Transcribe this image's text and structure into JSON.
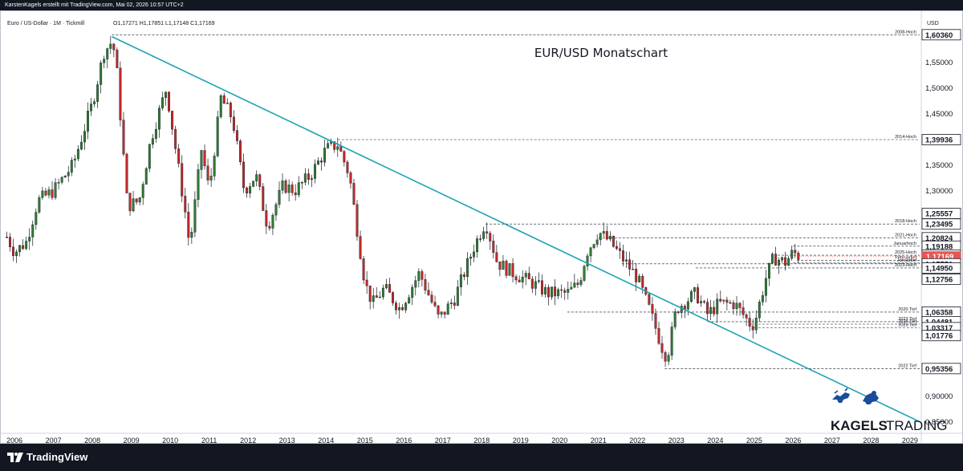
{
  "header": {
    "attribution": "KarstenKagels erstellt mit TradingView.com, Mai 02, 2026 10:57 UTC+2"
  },
  "legend": {
    "symbol": "Euro / US-Dollar · 1M · Tickmill",
    "ohlc": "O1,17271  H1,17851  L1,17148  C1,17169"
  },
  "footer": {
    "brand": "TradingView",
    "icon": "tradingview-logo-icon"
  },
  "watermark": {
    "brand_bold": "KAGELS",
    "brand_light": "TRADING",
    "icon": "bull-bear-icon"
  },
  "colors": {
    "up": "#26a69a",
    "down": "#ef5350",
    "candle_up": "#2e7d32",
    "candle_down": "#c62828",
    "trendline": "#1da2b4",
    "price_label": "#ef5350",
    "brand_blue": "#1a4c9a"
  },
  "chart_data": {
    "type": "candlestick",
    "title": "EUR/USD Monatschart",
    "instrument": "Euro / US-Dollar",
    "timeframe": "1M",
    "currency": "USD",
    "x_range": [
      2005.75,
      2029.25
    ],
    "y_range": [
      0.84,
      1.615
    ],
    "y_ticks": [
      0.85,
      0.9,
      1.3,
      1.35,
      1.45,
      1.5,
      1.55
    ],
    "x_ticks": [
      "2006",
      "2007",
      "2008",
      "2009",
      "2010",
      "2011",
      "2012",
      "2013",
      "2014",
      "2015",
      "2016",
      "2017",
      "2018",
      "2019",
      "2020",
      "2021",
      "2022",
      "2023",
      "2024",
      "2025",
      "2026",
      "2027",
      "2028",
      "2029"
    ],
    "last_price": 1.17169,
    "price_path": [
      [
        2005.8,
        1.21
      ],
      [
        2006.0,
        1.18
      ],
      [
        2006.3,
        1.2
      ],
      [
        2006.6,
        1.28
      ],
      [
        2007.0,
        1.3
      ],
      [
        2007.5,
        1.35
      ],
      [
        2008.0,
        1.47
      ],
      [
        2008.3,
        1.57
      ],
      [
        2008.5,
        1.59
      ],
      [
        2008.6,
        1.56
      ],
      [
        2008.9,
        1.27
      ],
      [
        2009.2,
        1.28
      ],
      [
        2009.5,
        1.4
      ],
      [
        2009.9,
        1.5
      ],
      [
        2010.0,
        1.45
      ],
      [
        2010.4,
        1.25
      ],
      [
        2010.5,
        1.19
      ],
      [
        2010.8,
        1.38
      ],
      [
        2011.0,
        1.3
      ],
      [
        2011.3,
        1.48
      ],
      [
        2011.6,
        1.44
      ],
      [
        2011.9,
        1.3
      ],
      [
        2012.2,
        1.33
      ],
      [
        2012.5,
        1.23
      ],
      [
        2012.9,
        1.31
      ],
      [
        2013.2,
        1.3
      ],
      [
        2013.6,
        1.33
      ],
      [
        2014.0,
        1.38
      ],
      [
        2014.3,
        1.39
      ],
      [
        2014.6,
        1.33
      ],
      [
        2015.0,
        1.12
      ],
      [
        2015.2,
        1.08
      ],
      [
        2015.5,
        1.11
      ],
      [
        2015.9,
        1.07
      ],
      [
        2016.4,
        1.14
      ],
      [
        2016.9,
        1.05
      ],
      [
        2017.3,
        1.09
      ],
      [
        2017.8,
        1.19
      ],
      [
        2018.1,
        1.24
      ],
      [
        2018.4,
        1.16
      ],
      [
        2018.8,
        1.14
      ],
      [
        2019.3,
        1.12
      ],
      [
        2019.7,
        1.1
      ],
      [
        2020.2,
        1.1
      ],
      [
        2020.5,
        1.12
      ],
      [
        2020.7,
        1.18
      ],
      [
        2021.0,
        1.22
      ],
      [
        2021.3,
        1.2
      ],
      [
        2021.7,
        1.16
      ],
      [
        2022.0,
        1.13
      ],
      [
        2022.3,
        1.07
      ],
      [
        2022.7,
        0.98
      ],
      [
        2022.8,
        0.99
      ],
      [
        2023.0,
        1.07
      ],
      [
        2023.5,
        1.1
      ],
      [
        2023.8,
        1.06
      ],
      [
        2024.1,
        1.08
      ],
      [
        2024.5,
        1.08
      ],
      [
        2024.9,
        1.04
      ],
      [
        2025.0,
        1.04
      ],
      [
        2025.3,
        1.13
      ],
      [
        2025.5,
        1.17
      ],
      [
        2025.8,
        1.16
      ],
      [
        2026.0,
        1.18
      ],
      [
        2026.2,
        1.17
      ]
    ],
    "trendline": {
      "from": [
        2008.5,
        1.6
      ],
      "to": [
        2029.3,
        0.85
      ]
    },
    "levels": [
      {
        "label": "2008-Hoch",
        "value": 1.6036,
        "from": 2008.5
      },
      {
        "label": "2014-Hoch",
        "value": 1.39936,
        "from": 2014.3
      },
      {
        "label": "",
        "value": 1.25557,
        "from": null
      },
      {
        "label": "2018-Hoch",
        "value": 1.23495,
        "from": 2018.1
      },
      {
        "label": "2021-Hoch",
        "value": 1.20824,
        "from": 2021.0
      },
      {
        "label": "Januarhoch",
        "value": 1.19188,
        "from": 2026.0
      },
      {
        "label": "2025-Hoch",
        "value": 1.17422,
        "from": 2025.6
      },
      {
        "label": "Februartief",
        "value": 1.164,
        "from": 2026.1
      },
      {
        "label": "Januartief",
        "value": 1.159,
        "from": 2026.0
      },
      {
        "label": "",
        "value": 1.15751,
        "from": 2021.6
      },
      {
        "label": "2023-Hoch",
        "value": 1.1495,
        "from": 2023.5
      },
      {
        "label": "",
        "value": 1.12756,
        "from": null
      },
      {
        "label": "2020 Tief",
        "value": 1.06358,
        "from": 2020.2
      },
      {
        "label": "",
        "value": 1.04481,
        "from": null
      },
      {
        "label": "2023 Tief",
        "value": 1.04481,
        "from": 2023.8
      },
      {
        "label": "2024 Tief",
        "value": 1.04,
        "from": 2024.9
      },
      {
        "label": "",
        "value": 1.03317,
        "from": null
      },
      {
        "label": "2025 Tief",
        "value": 1.03317,
        "from": 2025.0
      },
      {
        "label": "",
        "value": 1.01776,
        "from": null
      },
      {
        "label": "2022 Tief",
        "value": 0.95356,
        "from": 2022.7
      }
    ],
    "axis_labels": [
      {
        "text": "1,60360",
        "value": 1.6036,
        "boxed": true
      },
      {
        "text": "1,55000",
        "value": 1.55
      },
      {
        "text": "1,50000",
        "value": 1.5
      },
      {
        "text": "1,45000",
        "value": 1.45
      },
      {
        "text": "1,39936",
        "value": 1.39936,
        "boxed": true
      },
      {
        "text": "1,35000",
        "value": 1.35
      },
      {
        "text": "1,30000",
        "value": 1.3
      },
      {
        "text": "1,25557",
        "value": 1.25557,
        "boxed": true
      },
      {
        "text": "1,23495",
        "value": 1.23495,
        "boxed": true
      },
      {
        "text": "1,20824",
        "value": 1.20824,
        "boxed": true
      },
      {
        "text": "1,19188",
        "value": 1.19188,
        "boxed": true
      },
      {
        "text": "1,17422",
        "value": 1.17422,
        "boxed": true
      },
      {
        "text": "1,17169",
        "value": 1.17169,
        "highlight": true
      },
      {
        "text": "1,15751",
        "value": 1.15751,
        "boxed": true
      },
      {
        "text": "1,14950",
        "value": 1.1495,
        "boxed": true
      },
      {
        "text": "1,12756",
        "value": 1.12756,
        "boxed": true
      },
      {
        "text": "1,06358",
        "value": 1.06358,
        "boxed": true
      },
      {
        "text": "1,04481",
        "value": 1.04481,
        "boxed": true
      },
      {
        "text": "1,03317",
        "value": 1.03317,
        "boxed": true
      },
      {
        "text": "1,01776",
        "value": 1.01776,
        "boxed": true
      },
      {
        "text": "0,95356",
        "value": 0.95356,
        "boxed": true
      },
      {
        "text": "0,90000",
        "value": 0.9
      },
      {
        "text": "0,85000",
        "value": 0.85
      }
    ]
  }
}
